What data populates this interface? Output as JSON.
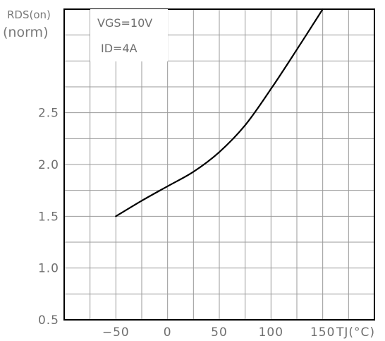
{
  "chart_data": {
    "type": "line",
    "title": "",
    "ylabel_line1": "RDS(on)",
    "ylabel_line2": "(norm)",
    "xlabel": "TJ(°C)",
    "annotations": [
      "VGS=10V",
      "ID=4A"
    ],
    "x_ticks": [
      -50,
      0,
      50,
      100,
      150
    ],
    "x_tick_labels": [
      "−50",
      "0",
      "50",
      "100",
      "150"
    ],
    "y_ticks": [
      0.5,
      1.0,
      1.5,
      2.0,
      2.5
    ],
    "y_tick_labels": [
      "0.5",
      "1.0",
      "1.5",
      "2.0",
      "2.5"
    ],
    "xlim": [
      -100,
      200
    ],
    "ylim": [
      0.5,
      3.5
    ],
    "grid": true,
    "series": [
      {
        "x": [
          -50,
          -25,
          0,
          25,
          50,
          75,
          100,
          125,
          150
        ],
        "y": [
          1.5,
          1.65,
          1.79,
          1.93,
          2.12,
          2.38,
          2.73,
          3.11,
          3.5
        ]
      }
    ]
  }
}
